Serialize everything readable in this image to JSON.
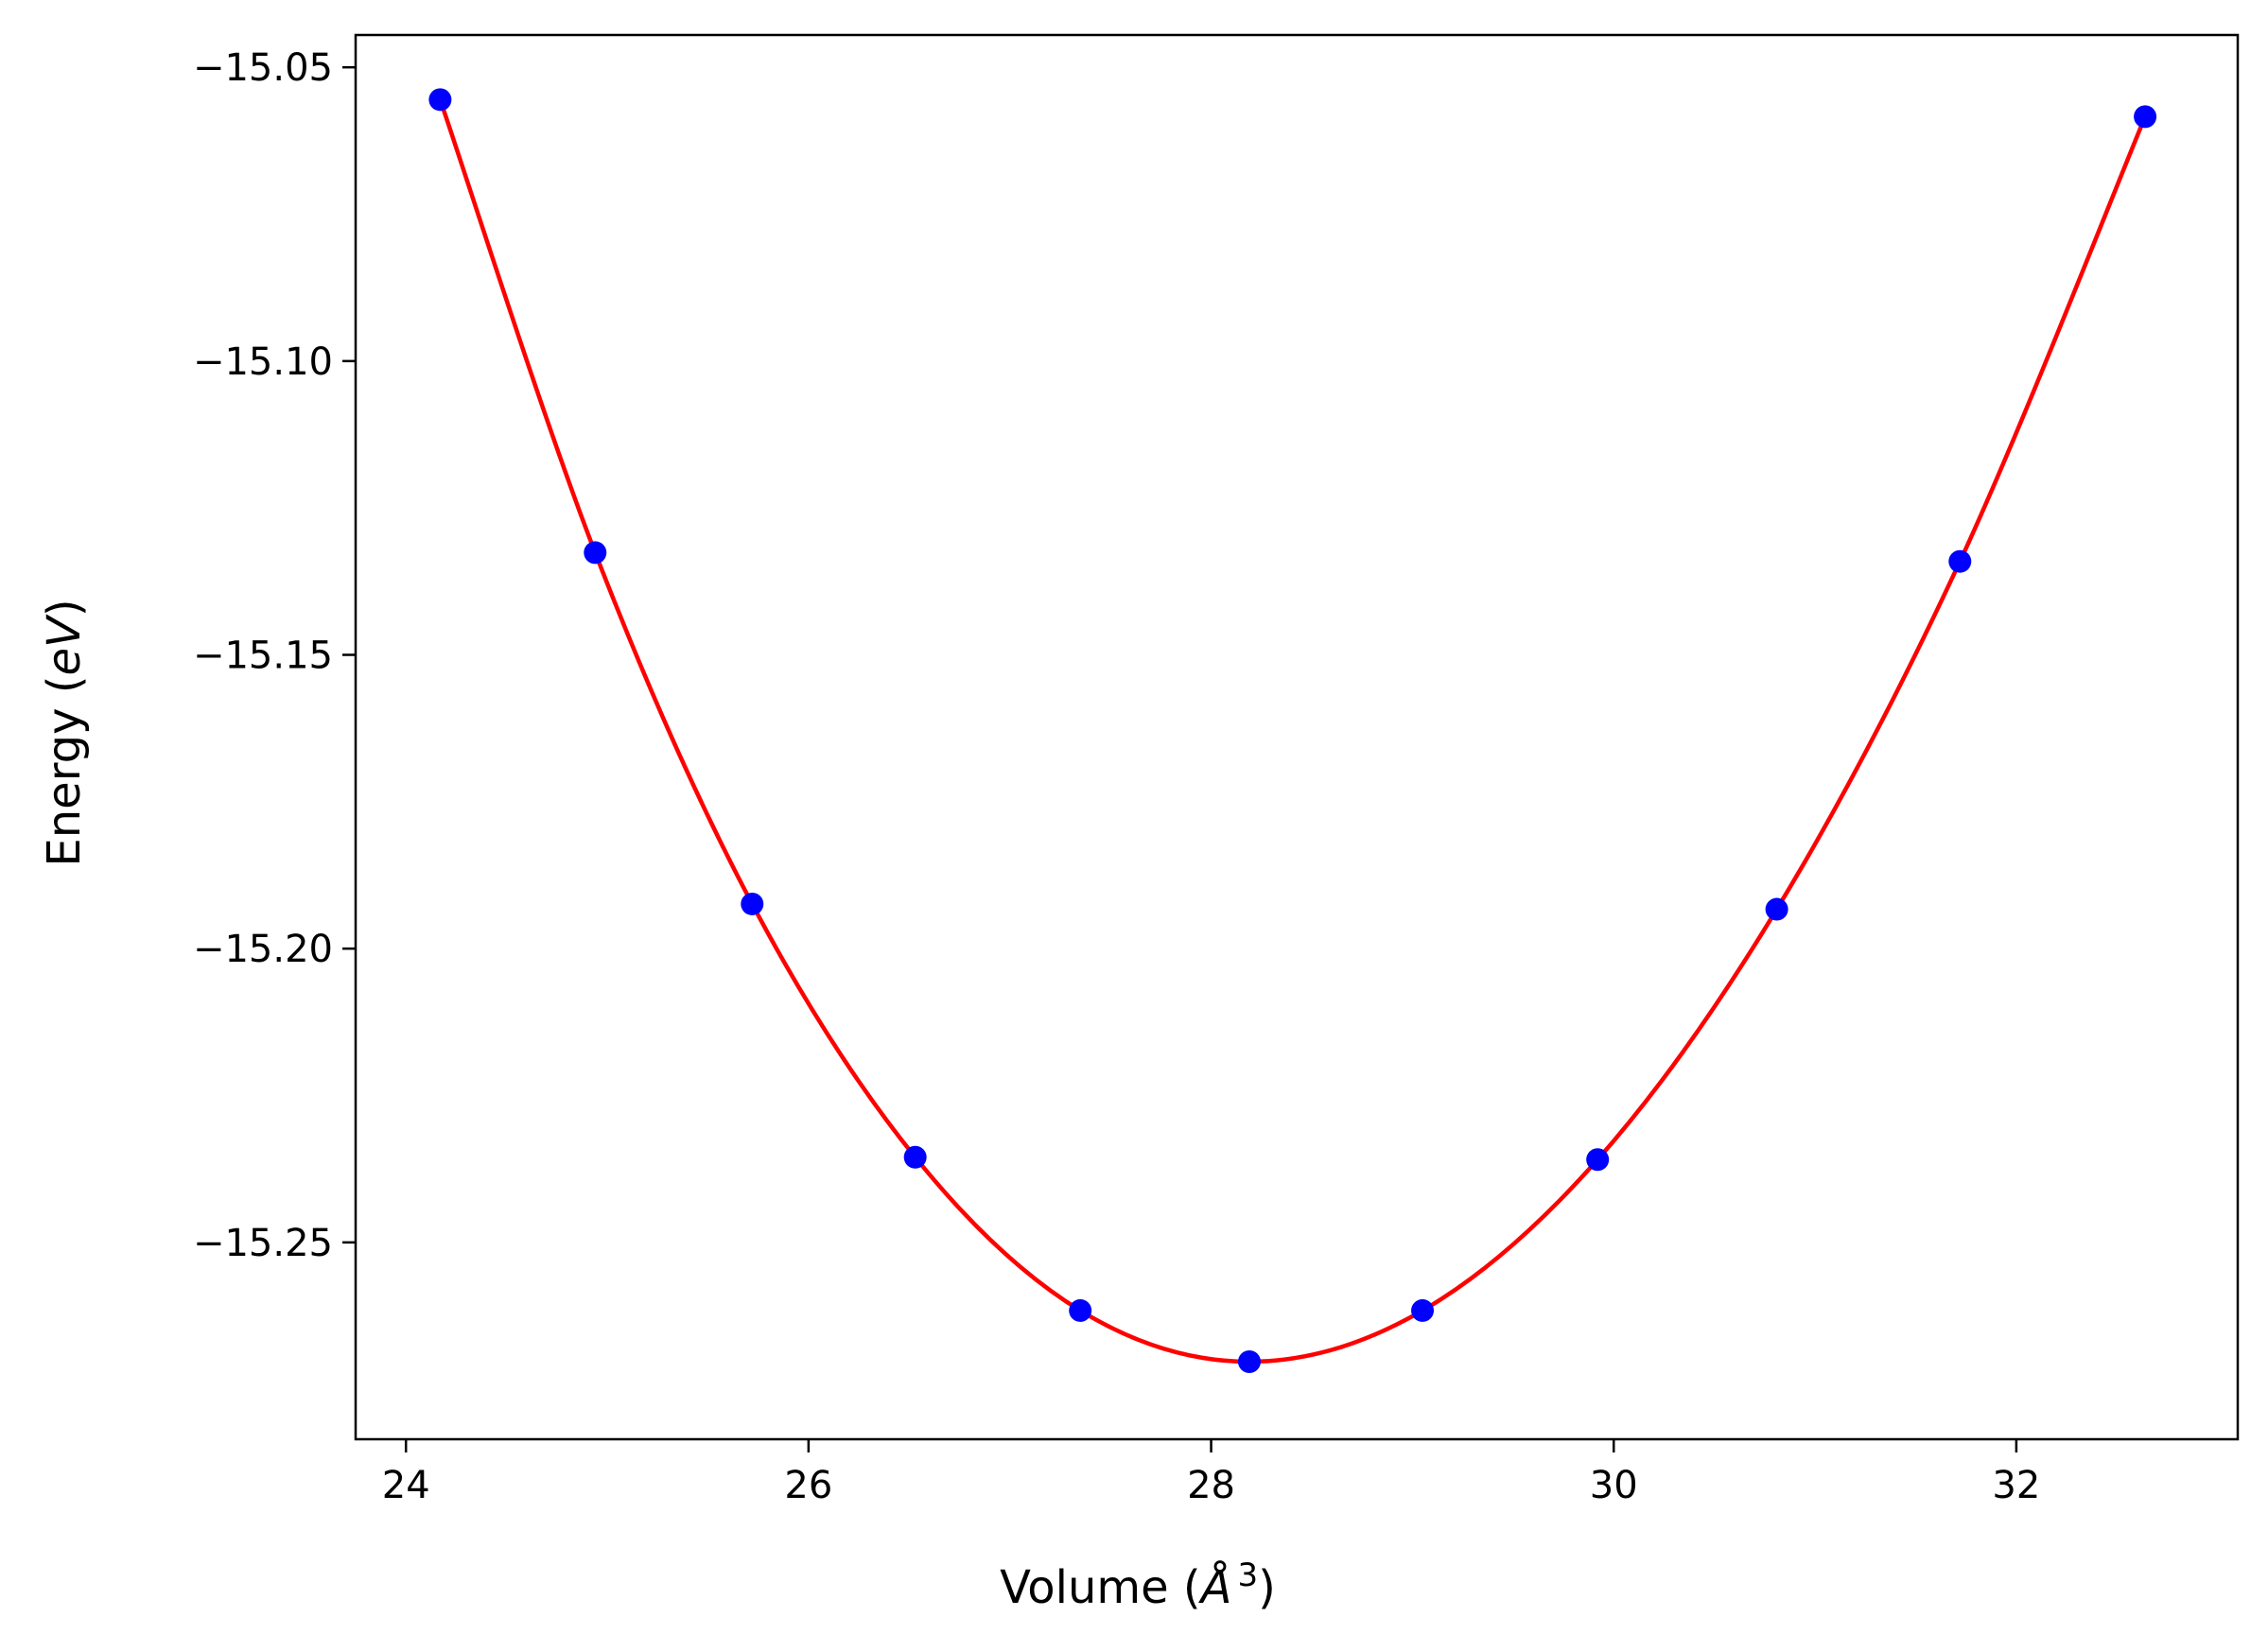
{
  "chart_data": {
    "type": "scatter",
    "title": "",
    "xlabel": "Volume (",
    "xlabel_math": "Å",
    "xlabel_sup": "3",
    "xlabel_close": ")",
    "ylabel": "Energy (",
    "ylabel_math": "eV",
    "ylabel_close": ")",
    "xlim": [
      23.75,
      33.1
    ],
    "ylim": [
      -15.2835,
      -15.0445
    ],
    "xticks": [
      24,
      26,
      28,
      30,
      32
    ],
    "xtick_labels": [
      "24",
      "26",
      "28",
      "30",
      "32"
    ],
    "yticks": [
      -15.05,
      -15.1,
      -15.15,
      -15.2,
      -15.25
    ],
    "ytick_labels": [
      "−15.05",
      "−15.10",
      "−15.15",
      "−15.20",
      "−15.25"
    ],
    "grid": false,
    "series": [
      {
        "kind": "points",
        "color": "#0000ff",
        "x": [
          24.17,
          24.94,
          25.72,
          26.53,
          27.35,
          28.19,
          29.05,
          29.92,
          30.81,
          31.72,
          32.64
        ],
        "y": [
          -15.0555,
          -15.1326,
          -15.1924,
          -15.2355,
          -15.2616,
          -15.2703,
          -15.2616,
          -15.2359,
          -15.1933,
          -15.1341,
          -15.0584
        ]
      },
      {
        "kind": "fit-line",
        "color": "#ff0000",
        "x": [
          24.17,
          24.94,
          25.72,
          26.53,
          27.35,
          28.19,
          29.05,
          29.92,
          30.81,
          31.72,
          32.64
        ],
        "y": [
          -15.0555,
          -15.1326,
          -15.1924,
          -15.2355,
          -15.2616,
          -15.2703,
          -15.2616,
          -15.2359,
          -15.1933,
          -15.1341,
          -15.0584
        ]
      }
    ]
  }
}
